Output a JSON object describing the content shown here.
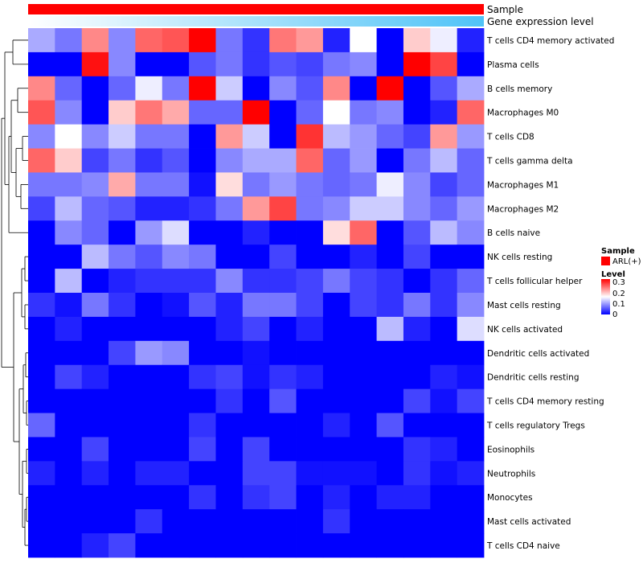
{
  "chart_data": {
    "type": "heatmap",
    "annotations": [
      {
        "name": "Sample",
        "style": "solid",
        "color": "#ff0000"
      },
      {
        "name": "Gene expression level",
        "style": "gradient",
        "color_low": "#ffffff",
        "color_high": "#4fc3f7"
      }
    ],
    "rows": [
      "T cells CD4 memory activated",
      "Plasma cells",
      "B cells memory",
      "Macrophages M0",
      "T cells CD8",
      "T cells gamma delta",
      "Macrophages M1",
      "Macrophages M2",
      "B cells naive",
      "NK cells resting",
      "T cells follicular helper",
      "Mast cells resting",
      "NK cells activated",
      "Dendritic cells activated",
      "Dendritic cells resting",
      "T cells CD4 memory resting",
      "T cells regulatory  Tregs",
      "Eosinophils",
      "Neutrophils",
      "Monocytes",
      "Mast cells activated",
      "T cells CD4 naive"
    ],
    "n_columns": 17,
    "values": [
      [
        0.1,
        0.07,
        0.22,
        0.08,
        0.24,
        0.25,
        0.3,
        0.07,
        0.03,
        0.23,
        0.21,
        0.02,
        0.15,
        0.0,
        0.18,
        0.14,
        0.02
      ],
      [
        0.0,
        0.0,
        0.29,
        0.08,
        0.0,
        0.0,
        0.05,
        0.07,
        0.03,
        0.05,
        0.04,
        0.07,
        0.08,
        0.0,
        0.3,
        0.26,
        0.0
      ],
      [
        0.22,
        0.06,
        0.0,
        0.06,
        0.14,
        0.07,
        0.3,
        0.12,
        0.0,
        0.08,
        0.05,
        0.22,
        0.0,
        0.3,
        0.0,
        0.05,
        0.1
      ],
      [
        0.25,
        0.08,
        0.0,
        0.18,
        0.23,
        0.2,
        0.06,
        0.06,
        0.3,
        0.0,
        0.06,
        0.15,
        0.07,
        0.08,
        0.0,
        0.02,
        0.24
      ],
      [
        0.08,
        0.15,
        0.08,
        0.12,
        0.07,
        0.07,
        0.0,
        0.21,
        0.12,
        0.0,
        0.27,
        0.11,
        0.09,
        0.06,
        0.04,
        0.21,
        0.09
      ],
      [
        0.24,
        0.18,
        0.04,
        0.07,
        0.03,
        0.05,
        0.0,
        0.08,
        0.1,
        0.1,
        0.24,
        0.06,
        0.09,
        0.0,
        0.07,
        0.11,
        0.06
      ],
      [
        0.07,
        0.07,
        0.08,
        0.2,
        0.07,
        0.07,
        0.01,
        0.17,
        0.07,
        0.09,
        0.07,
        0.06,
        0.07,
        0.14,
        0.08,
        0.04,
        0.06
      ],
      [
        0.04,
        0.11,
        0.06,
        0.05,
        0.02,
        0.02,
        0.03,
        0.07,
        0.21,
        0.26,
        0.07,
        0.08,
        0.12,
        0.12,
        0.08,
        0.06,
        0.09
      ],
      [
        0.0,
        0.08,
        0.06,
        0.0,
        0.09,
        0.13,
        0.0,
        0.0,
        0.02,
        0.0,
        0.0,
        0.17,
        0.24,
        0.0,
        0.05,
        0.11,
        0.08
      ],
      [
        0.0,
        0.0,
        0.11,
        0.07,
        0.05,
        0.08,
        0.07,
        0.0,
        0.0,
        0.04,
        0.0,
        0.0,
        0.02,
        0.0,
        0.04,
        0.0,
        0.0
      ],
      [
        0.0,
        0.11,
        0.0,
        0.02,
        0.03,
        0.03,
        0.03,
        0.08,
        0.03,
        0.03,
        0.04,
        0.07,
        0.04,
        0.03,
        0.0,
        0.03,
        0.06
      ],
      [
        0.03,
        0.01,
        0.07,
        0.03,
        0.0,
        0.01,
        0.05,
        0.02,
        0.07,
        0.07,
        0.04,
        0.0,
        0.04,
        0.03,
        0.07,
        0.03,
        0.08
      ],
      [
        0.0,
        0.02,
        0.0,
        0.0,
        0.0,
        0.0,
        0.0,
        0.02,
        0.04,
        0.0,
        0.02,
        0.0,
        0.0,
        0.11,
        0.02,
        0.0,
        0.13
      ],
      [
        0.0,
        0.0,
        0.0,
        0.04,
        0.09,
        0.08,
        0.0,
        0.0,
        0.01,
        0.0,
        0.0,
        0.0,
        0.0,
        0.0,
        0.0,
        0.0,
        0.0
      ],
      [
        0.0,
        0.04,
        0.02,
        0.0,
        0.0,
        0.0,
        0.03,
        0.04,
        0.01,
        0.03,
        0.02,
        0.0,
        0.0,
        0.0,
        0.0,
        0.02,
        0.01
      ],
      [
        0.0,
        0.0,
        0.0,
        0.0,
        0.0,
        0.0,
        0.0,
        0.03,
        0.0,
        0.05,
        0.0,
        0.0,
        0.0,
        0.0,
        0.04,
        0.01,
        0.04
      ],
      [
        0.06,
        0.0,
        0.0,
        0.0,
        0.0,
        0.0,
        0.03,
        0.0,
        0.0,
        0.0,
        0.0,
        0.02,
        0.0,
        0.05,
        0.0,
        0.0,
        0.0
      ],
      [
        0.0,
        0.0,
        0.04,
        0.0,
        0.0,
        0.0,
        0.04,
        0.0,
        0.04,
        0.0,
        0.0,
        0.0,
        0.0,
        0.0,
        0.03,
        0.02,
        0.0
      ],
      [
        0.02,
        0.0,
        0.02,
        0.0,
        0.02,
        0.02,
        0.0,
        0.0,
        0.04,
        0.04,
        0.01,
        0.01,
        0.01,
        0.0,
        0.03,
        0.01,
        0.02
      ],
      [
        0.0,
        0.0,
        0.0,
        0.0,
        0.0,
        0.0,
        0.03,
        0.0,
        0.03,
        0.04,
        0.0,
        0.02,
        0.0,
        0.02,
        0.02,
        0.0,
        0.0
      ],
      [
        0.0,
        0.0,
        0.0,
        0.0,
        0.03,
        0.0,
        0.0,
        0.0,
        0.0,
        0.0,
        0.0,
        0.03,
        0.0,
        0.0,
        0.0,
        0.0,
        0.0
      ],
      [
        0.0,
        0.0,
        0.02,
        0.04,
        0.0,
        0.0,
        0.0,
        0.0,
        0.0,
        0.0,
        0.0,
        0.0,
        0.0,
        0.0,
        0.0,
        0.0,
        0.0
      ]
    ],
    "color_scale": {
      "low": "#0000ff",
      "mid": "#ffffff",
      "high": "#ff0000",
      "min": 0,
      "mid_value": 0.15,
      "max": 0.3
    },
    "legend": {
      "sample_title": "Sample",
      "sample_item": "ARL(+)",
      "level_title": "Level",
      "ticks": [
        "0.3",
        "0.2",
        "0.1",
        "0"
      ]
    },
    "row_dendrogram": true
  }
}
